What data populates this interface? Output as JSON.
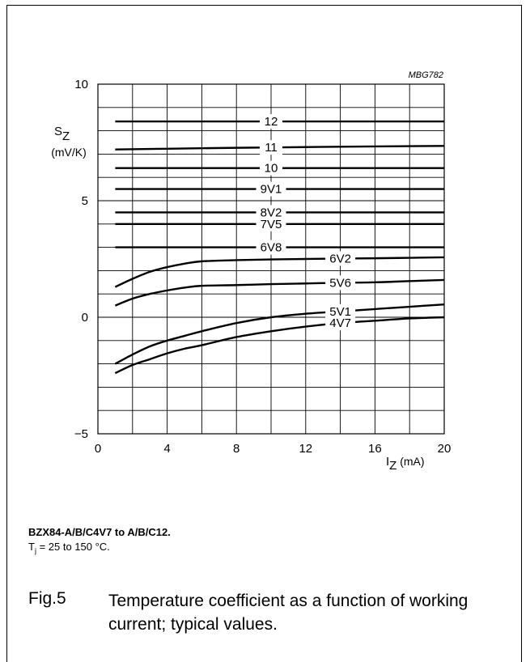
{
  "figure_code": "MBG782",
  "device_caption": "BZX84-A/B/C4V7 to A/B/C12.",
  "conditions": {
    "prefix": "T",
    "subscript": "j",
    "text": " = 25 to 150 °C."
  },
  "figure": {
    "number": "Fig.5",
    "title": "Temperature coefficient as a function of working current; typical values."
  },
  "chart_data": {
    "type": "line",
    "title": "",
    "ylabel_main": "S",
    "ylabel_sub": "Z",
    "ylabel_unit": "(mV/K)",
    "xlabel_main": "I",
    "xlabel_sub": "Z",
    "xlabel_unit": " (mA)",
    "xlim": [
      0,
      20
    ],
    "ylim": [
      -5,
      10
    ],
    "xticks": [
      0,
      4,
      8,
      12,
      16,
      20
    ],
    "yticks": [
      {
        "value": 10,
        "label": "10"
      },
      {
        "value": 5,
        "label": "5"
      },
      {
        "value": 0,
        "label": "0"
      },
      {
        "value": -5,
        "label": "−5"
      }
    ],
    "grid": true,
    "grid_x_step": 2,
    "grid_y_step": 1,
    "series": [
      {
        "name": "12",
        "label_x": 10,
        "x": [
          1,
          20
        ],
        "y": [
          8.4,
          8.4
        ]
      },
      {
        "name": "11",
        "label_x": 10,
        "x": [
          1,
          4,
          8,
          12,
          16,
          20
        ],
        "y": [
          7.2,
          7.23,
          7.27,
          7.3,
          7.33,
          7.35
        ]
      },
      {
        "name": "10",
        "label_x": 10,
        "x": [
          1,
          20
        ],
        "y": [
          6.4,
          6.4
        ]
      },
      {
        "name": "9V1",
        "label_x": 10,
        "x": [
          1,
          20
        ],
        "y": [
          5.5,
          5.5
        ]
      },
      {
        "name": "8V2",
        "label_x": 10,
        "x": [
          1,
          20
        ],
        "y": [
          4.5,
          4.5
        ]
      },
      {
        "name": "7V5",
        "label_x": 10,
        "x": [
          1,
          20
        ],
        "y": [
          4.0,
          4.0
        ]
      },
      {
        "name": "6V8",
        "label_x": 10,
        "x": [
          1,
          20
        ],
        "y": [
          3.0,
          3.0
        ]
      },
      {
        "name": "6V2",
        "label_x": 14,
        "x": [
          1,
          2,
          3,
          4,
          5,
          6,
          8,
          10,
          12,
          14,
          16,
          18,
          20
        ],
        "y": [
          1.3,
          1.65,
          1.95,
          2.15,
          2.3,
          2.4,
          2.45,
          2.48,
          2.5,
          2.52,
          2.53,
          2.55,
          2.57
        ]
      },
      {
        "name": "5V6",
        "label_x": 14,
        "x": [
          1,
          2,
          3,
          4,
          5,
          6,
          8,
          10,
          12,
          14,
          16,
          18,
          20
        ],
        "y": [
          0.5,
          0.8,
          1.0,
          1.15,
          1.27,
          1.35,
          1.38,
          1.42,
          1.45,
          1.48,
          1.5,
          1.55,
          1.6
        ]
      },
      {
        "name": "5V1",
        "label_x": 14,
        "x": [
          1,
          2,
          3,
          4,
          5,
          6,
          8,
          10,
          12,
          14,
          16,
          18,
          20
        ],
        "y": [
          -2.0,
          -1.6,
          -1.25,
          -1.0,
          -0.8,
          -0.6,
          -0.25,
          0.0,
          0.15,
          0.25,
          0.35,
          0.45,
          0.55
        ]
      },
      {
        "name": "4V7",
        "label_x": 14,
        "x": [
          1,
          2,
          3,
          4,
          5,
          6,
          8,
          10,
          12,
          14,
          16,
          18,
          20
        ],
        "y": [
          -2.4,
          -2.05,
          -1.8,
          -1.55,
          -1.35,
          -1.2,
          -0.85,
          -0.6,
          -0.4,
          -0.25,
          -0.15,
          -0.05,
          0.0
        ]
      }
    ]
  }
}
